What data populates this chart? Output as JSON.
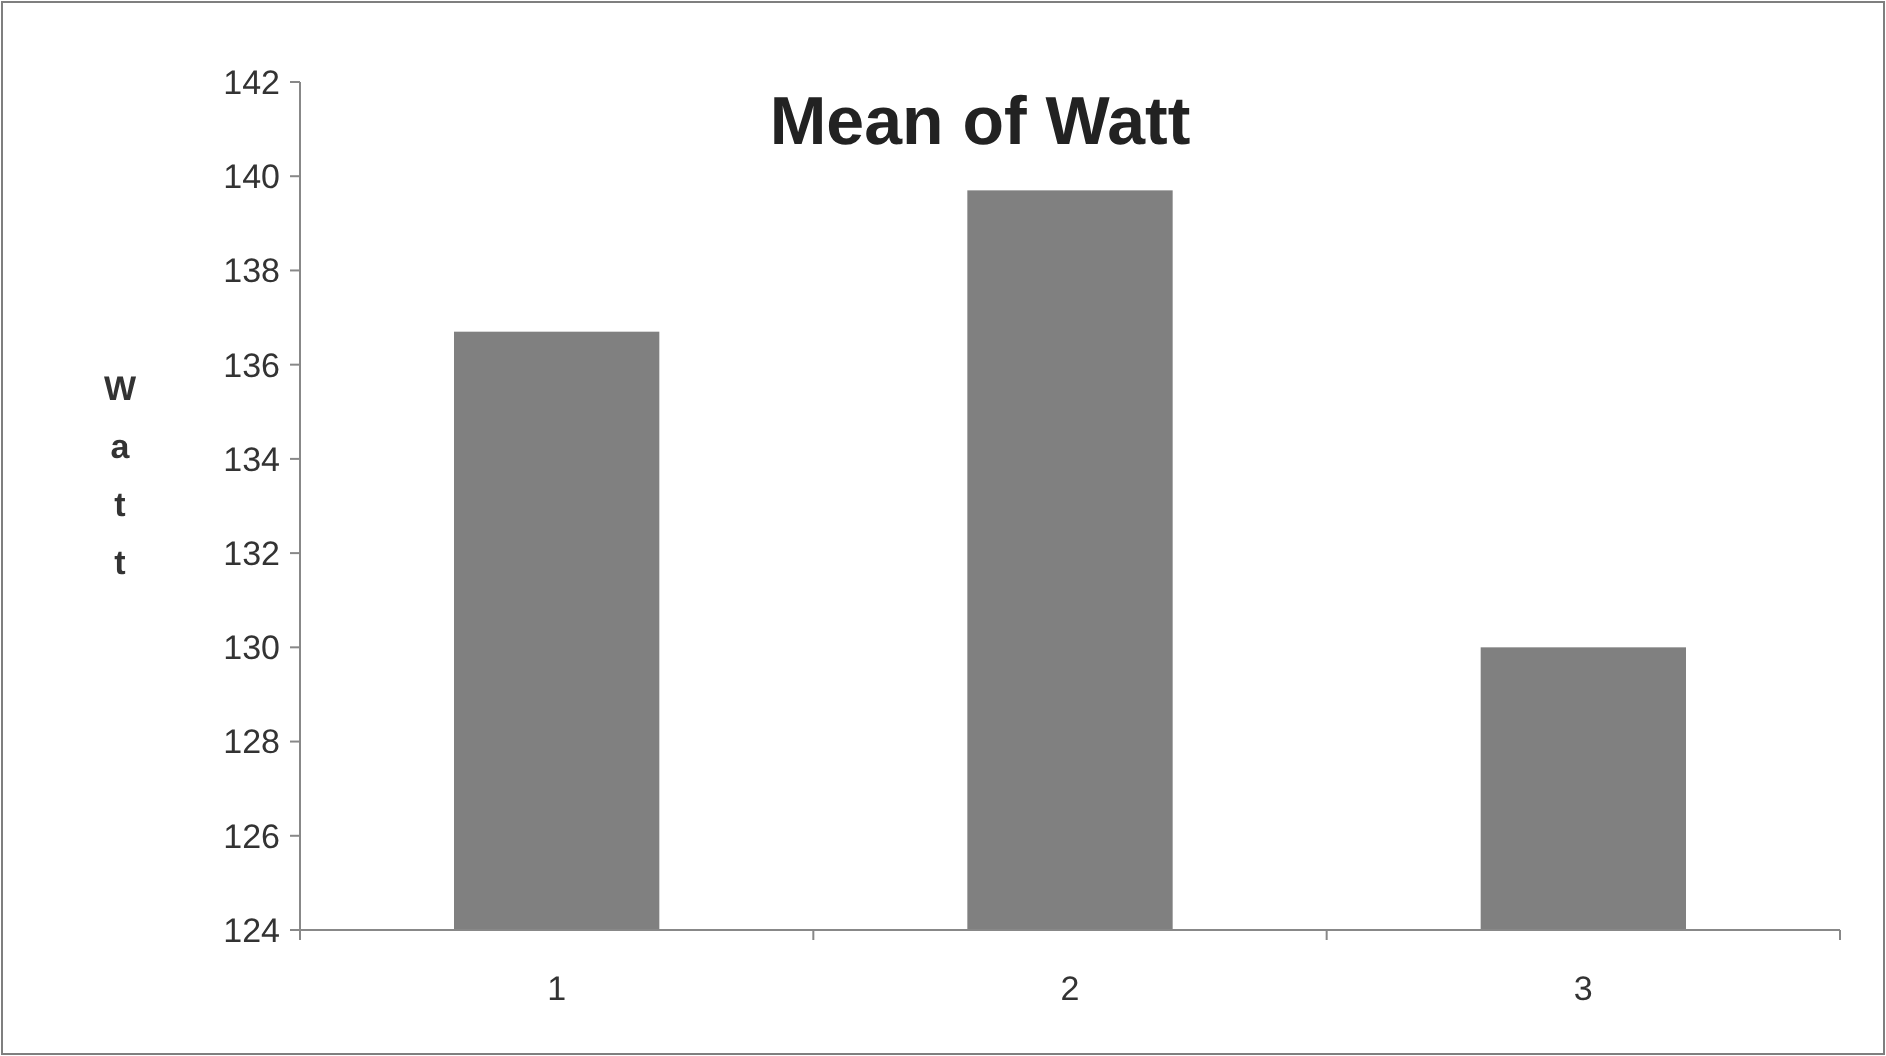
{
  "chart_data": {
    "type": "bar",
    "title": "Mean of Watt",
    "ylabel": "Watt",
    "categories": [
      "1",
      "2",
      "3"
    ],
    "values": [
      136.7,
      139.7,
      130.0
    ],
    "color": "#808080",
    "ylim": [
      124,
      142
    ],
    "yticks": [
      124,
      126,
      128,
      130,
      132,
      134,
      136,
      138,
      140,
      142
    ],
    "grid": false
  }
}
